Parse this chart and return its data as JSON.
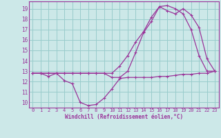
{
  "bg_color": "#cce8e8",
  "grid_color": "#99cccc",
  "line_color": "#993399",
  "xlabel": "Windchill (Refroidissement éolien,°C)",
  "xlim": [
    -0.5,
    23.5
  ],
  "ylim": [
    9.5,
    19.7
  ],
  "xtick_labels": [
    "0",
    "1",
    "2",
    "3",
    "4",
    "5",
    "6",
    "7",
    "8",
    "9",
    "10",
    "11",
    "12",
    "13",
    "14",
    "15",
    "16",
    "17",
    "18",
    "19",
    "20",
    "21",
    "22",
    "23"
  ],
  "xtick_pos": [
    0,
    1,
    2,
    3,
    4,
    5,
    6,
    7,
    8,
    9,
    10,
    11,
    12,
    13,
    14,
    15,
    16,
    17,
    18,
    19,
    20,
    21,
    22,
    23
  ],
  "yticks": [
    10,
    11,
    12,
    13,
    14,
    15,
    16,
    17,
    18,
    19
  ],
  "line1_x": [
    0,
    1,
    2,
    3,
    4,
    5,
    6,
    7,
    8,
    9,
    10,
    11,
    12,
    13,
    14,
    15,
    16,
    17,
    18,
    19,
    20,
    21,
    22,
    23
  ],
  "line1_y": [
    12.8,
    12.8,
    12.5,
    12.8,
    12.1,
    11.8,
    10.0,
    9.7,
    9.8,
    10.4,
    11.3,
    12.3,
    12.4,
    12.4,
    12.4,
    12.4,
    12.5,
    12.5,
    12.6,
    12.7,
    12.7,
    12.8,
    12.8,
    13.0
  ],
  "line2_x": [
    0,
    1,
    2,
    3,
    4,
    5,
    6,
    7,
    8,
    9,
    10,
    11,
    12,
    13,
    14,
    15,
    16,
    17,
    18,
    19,
    20,
    21,
    22,
    23
  ],
  "line2_y": [
    12.8,
    12.8,
    12.8,
    12.8,
    12.8,
    12.8,
    12.8,
    12.8,
    12.8,
    12.8,
    12.4,
    12.4,
    13.0,
    14.8,
    16.7,
    17.8,
    19.2,
    19.3,
    19.0,
    18.5,
    17.0,
    14.5,
    13.0,
    13.0
  ],
  "line3_x": [
    0,
    1,
    2,
    3,
    4,
    5,
    6,
    7,
    8,
    9,
    10,
    11,
    12,
    13,
    14,
    15,
    16,
    17,
    18,
    19,
    20,
    21,
    22,
    23
  ],
  "line3_y": [
    12.8,
    12.8,
    12.8,
    12.8,
    12.8,
    12.8,
    12.8,
    12.8,
    12.8,
    12.8,
    12.8,
    13.5,
    14.5,
    15.8,
    16.8,
    18.2,
    19.2,
    18.8,
    18.5,
    19.0,
    18.4,
    17.2,
    14.2,
    13.0
  ],
  "title_fontsize": 5,
  "tick_fontsize": 5,
  "xlabel_fontsize": 5.5
}
